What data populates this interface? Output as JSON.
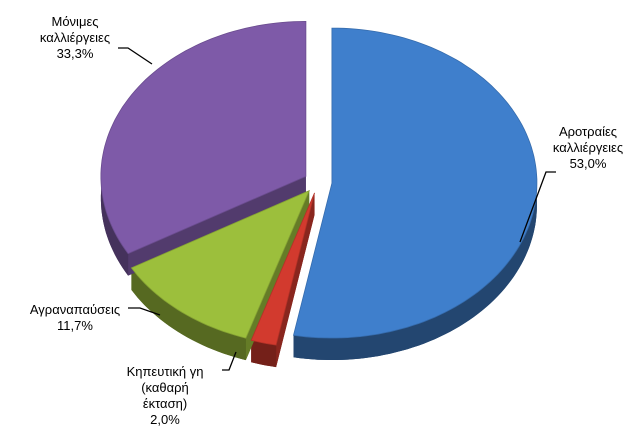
{
  "chart_data": {
    "type": "pie",
    "categories": [
      "Αροτραίες καλλιέργειες",
      "Κηπευτική γη (καθαρή έκταση)",
      "Αγραναπαύσεις",
      "Μόνιμες καλλιέργειες"
    ],
    "values": [
      53.0,
      2.0,
      11.7,
      33.3
    ],
    "value_labels": [
      "53,0%",
      "2,0%",
      "11,7%",
      "33,3%"
    ],
    "colors": [
      "#3f7fcc",
      "#d23a2e",
      "#9cbf3c",
      "#7e5aa8"
    ]
  }
}
